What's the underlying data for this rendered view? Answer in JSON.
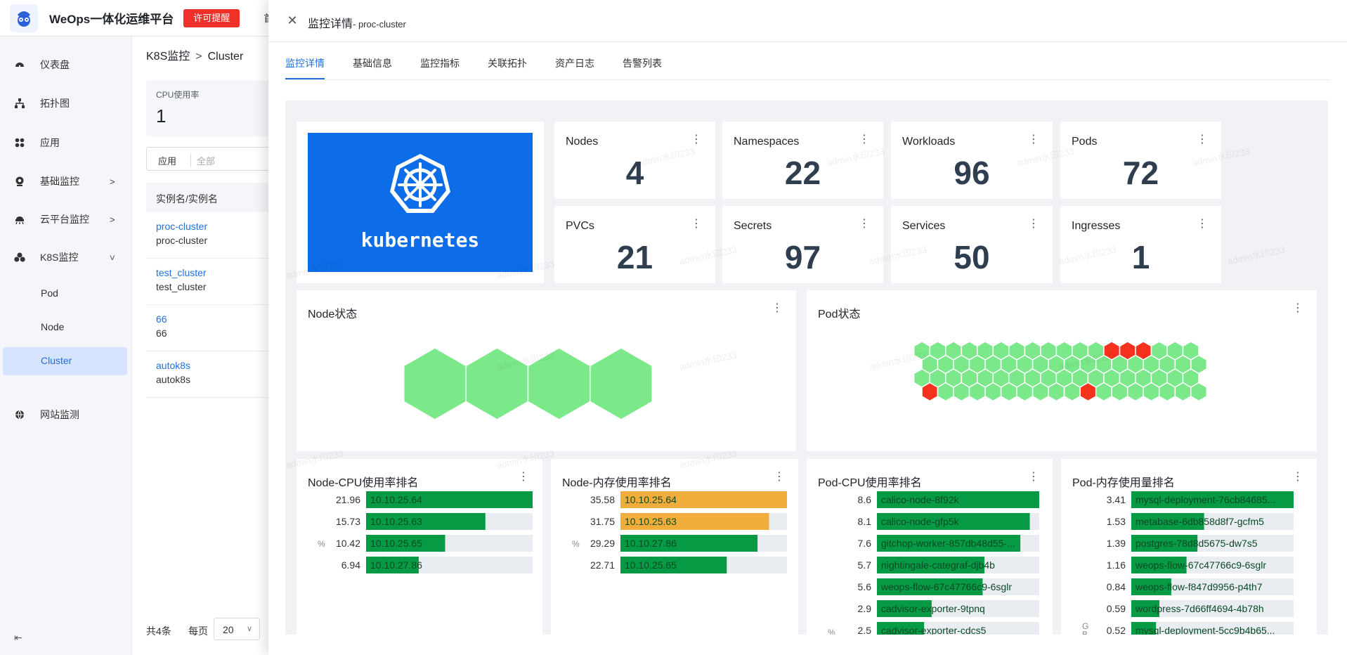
{
  "topbar": {
    "title": "WeOps一体化运维平台",
    "license_btn": "许可提醒",
    "home": "首页"
  },
  "sidebar": {
    "items": [
      {
        "label": "仪表盘",
        "icon": "dashboard-icon"
      },
      {
        "label": "拓扑图",
        "icon": "topology-icon"
      },
      {
        "label": "应用",
        "icon": "apps-icon"
      },
      {
        "label": "基础监控",
        "icon": "monitor-icon",
        "arrow": ">"
      },
      {
        "label": "云平台监控",
        "icon": "cloud-icon",
        "arrow": ">"
      },
      {
        "label": "K8S监控",
        "icon": "k8s-icon",
        "arrow": "v"
      },
      {
        "label": "网站监测",
        "icon": "web-icon"
      }
    ],
    "k8s_sub": [
      "Pod",
      "Node",
      "Cluster"
    ],
    "collapse": "⇤"
  },
  "list": {
    "crumb_parent": "K8S监控",
    "crumb_current": "Cluster",
    "cpu_label": "CPU使用率",
    "cpu_value": "1",
    "filter_key": "应用",
    "filter_value": "全部",
    "column_header": "实例名/实例名",
    "rows": [
      {
        "link": "proc-cluster",
        "name": "proc-cluster"
      },
      {
        "link": "test_cluster",
        "name": "test_cluster"
      },
      {
        "link": "66",
        "name": "66"
      },
      {
        "link": "autok8s",
        "name": "autok8s"
      }
    ],
    "total": "共4条",
    "per_page_label": "每页",
    "page_size": "20"
  },
  "drawer": {
    "title": "监控详情",
    "subtitle": "- proc-cluster",
    "tabs": [
      "监控详情",
      "基础信息",
      "监控指标",
      "关联拓扑",
      "资产日志",
      "告警列表"
    ]
  },
  "watermark": "admin水印233",
  "banner_text": "kubernetes",
  "stats": [
    {
      "label": "Nodes",
      "value": "4"
    },
    {
      "label": "Namespaces",
      "value": "22"
    },
    {
      "label": "Workloads",
      "value": "96"
    },
    {
      "label": "Pods",
      "value": "72"
    },
    {
      "label": "PVCs",
      "value": "21"
    },
    {
      "label": "Secrets",
      "value": "97"
    },
    {
      "label": "Services",
      "value": "50"
    },
    {
      "label": "Ingresses",
      "value": "1"
    }
  ],
  "node_status": {
    "title": "Node状态",
    "count": 4,
    "color": "#7be88a"
  },
  "pod_status": {
    "title": "Pod状态",
    "total": 72,
    "columns": 18,
    "red_indices": [
      12,
      13,
      14,
      54,
      64
    ],
    "ok_color": "#7be88a",
    "bad_color": "#f5321e"
  },
  "colors": {
    "green": "#069a44",
    "orange": "#f0ad3c",
    "track": "#e9ecf0"
  },
  "chart_data": [
    {
      "type": "bar",
      "title": "Node-CPU使用率排名",
      "unit": "%",
      "max": 21.96,
      "categories": [
        "10.10.25.64",
        "10.10.25.63",
        "10.10.25.65",
        "10.10.27.86"
      ],
      "values": [
        21.96,
        15.73,
        10.42,
        6.94
      ],
      "labels": [
        "21.96",
        "15.73",
        "10.42",
        "6.94"
      ],
      "colors": [
        "#069a44",
        "#069a44",
        "#069a44",
        "#069a44"
      ]
    },
    {
      "type": "bar",
      "title": "Node-内存使用率排名",
      "unit": "%",
      "max": 35.58,
      "categories": [
        "10.10.25.64",
        "10.10.25.63",
        "10.10.27.86",
        "10.10.25.65"
      ],
      "values": [
        35.58,
        31.75,
        29.29,
        22.71
      ],
      "labels": [
        "35.58",
        "31.75",
        "29.29",
        "22.71"
      ],
      "colors": [
        "#f0ad3c",
        "#f0ad3c",
        "#069a44",
        "#069a44"
      ]
    },
    {
      "type": "bar",
      "title": "Pod-CPU使用率排名",
      "unit": "%",
      "max": 8.6,
      "categories": [
        "calico-node-8f92k",
        "calico-node-gfp5k",
        "gitchop-worker-857db48d55-...",
        "nightingale-categraf-djb4b",
        "weops-flow-67c47766c9-6sglr",
        "cadvisor-exporter-9tpnq",
        "cadvisor-exporter-cdcs5"
      ],
      "values": [
        8.6,
        8.1,
        7.6,
        5.7,
        5.6,
        2.9,
        2.5
      ],
      "labels": [
        "8.6",
        "8.1",
        "7.6",
        "5.7",
        "5.6",
        "2.9",
        "2.5"
      ],
      "colors": [
        "#069a44",
        "#069a44",
        "#069a44",
        "#069a44",
        "#069a44",
        "#069a44",
        "#069a44"
      ]
    },
    {
      "type": "bar",
      "title": "Pod-内存使用量排名",
      "unit": "GB",
      "max": 3.41,
      "categories": [
        "mysql-deployment-76cb84685...",
        "metabase-6db858d8f7-gcfm5",
        "postgres-78d8d5675-dw7s5",
        "weops-flow-67c47766c9-6sglr",
        "weops-flow-f847d9956-p4th7",
        "wordpress-7d66ff4694-4b78h",
        "mysql-deployment-5cc9b4b65..."
      ],
      "values": [
        3.41,
        1.53,
        1.39,
        1.16,
        0.84,
        0.59,
        0.52
      ],
      "labels": [
        "3.41",
        "1.53",
        "1.39",
        "1.16",
        "0.84",
        "0.59",
        "0.52"
      ],
      "colors": [
        "#069a44",
        "#069a44",
        "#069a44",
        "#069a44",
        "#069a44",
        "#069a44",
        "#069a44"
      ]
    }
  ]
}
